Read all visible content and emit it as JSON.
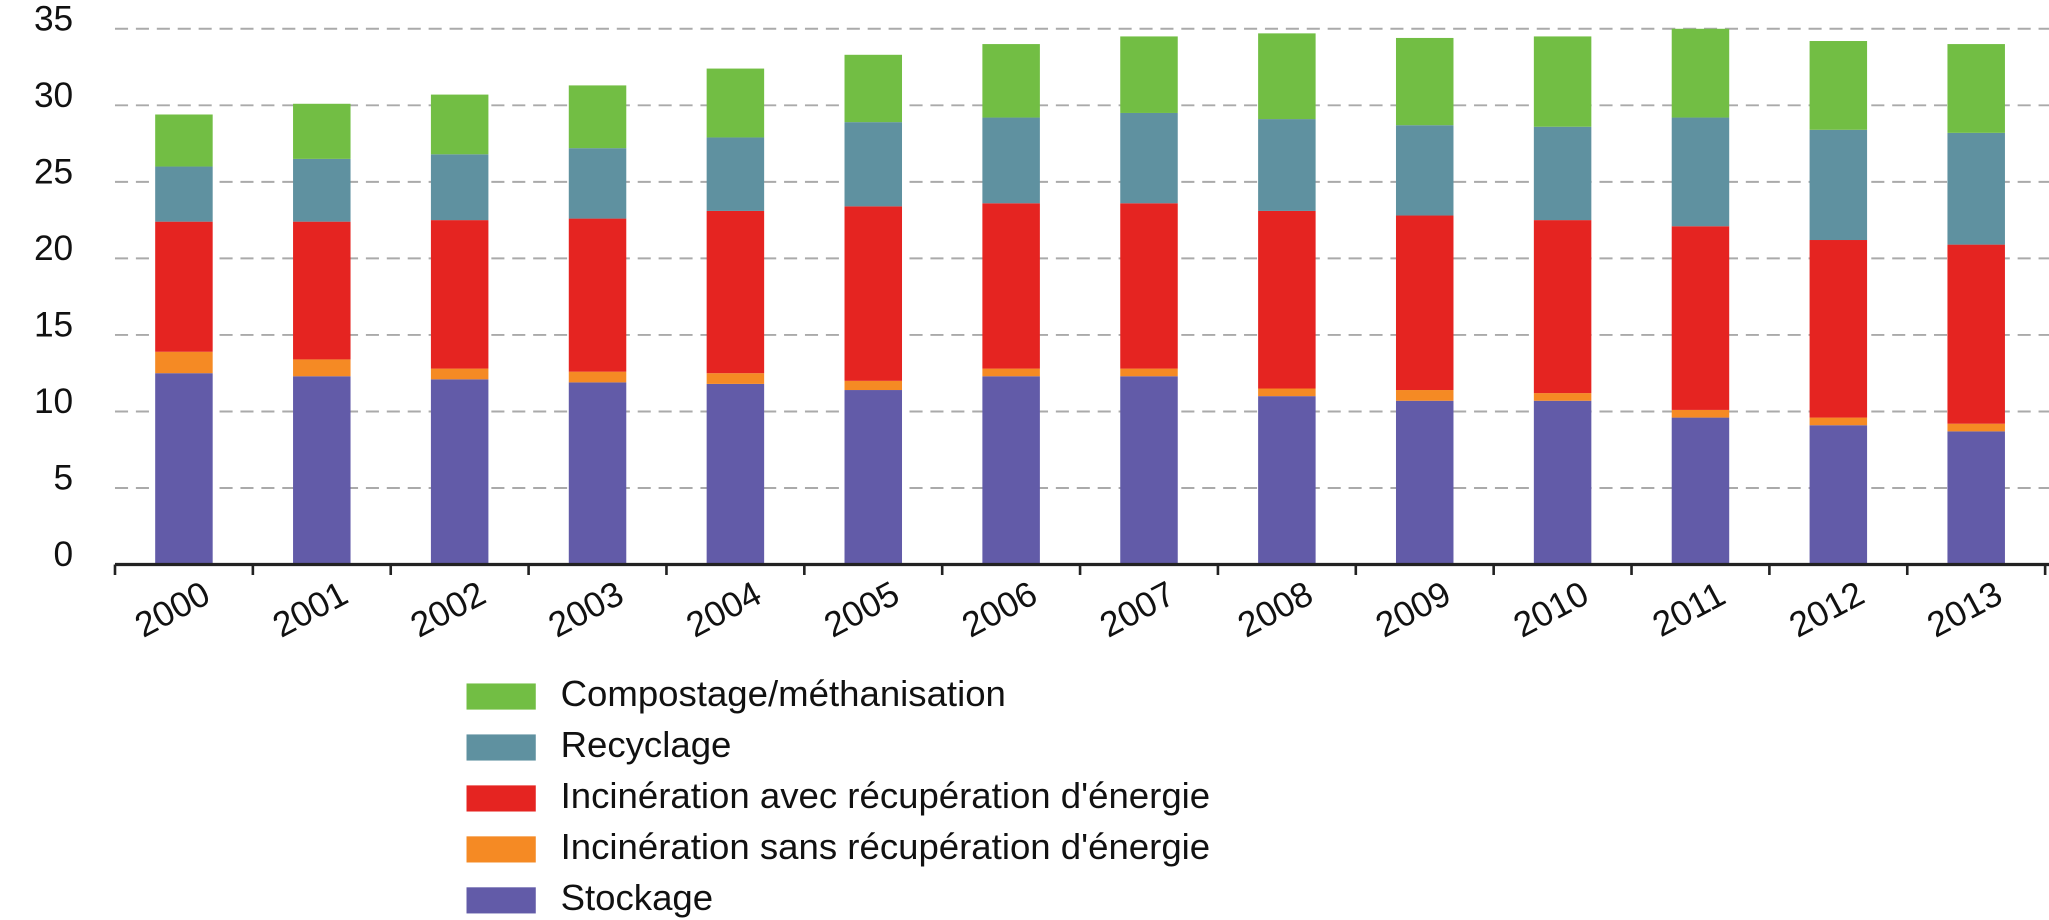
{
  "chart_data": {
    "type": "stacked-bar",
    "categories": [
      "2000",
      "2001",
      "2002",
      "2003",
      "2004",
      "2005",
      "2006",
      "2007",
      "2008",
      "2009",
      "2010",
      "2011",
      "2012",
      "2013"
    ],
    "series": [
      {
        "name": "Stockage",
        "color": "#625ba8",
        "values": [
          12.5,
          12.3,
          12.1,
          11.9,
          11.8,
          11.4,
          12.3,
          12.3,
          11.0,
          10.7,
          10.7,
          9.6,
          9.1,
          8.7
        ]
      },
      {
        "name": "Incinération sans récupération d'énergie",
        "color": "#f58a24",
        "values": [
          1.4,
          1.1,
          0.7,
          0.7,
          0.7,
          0.6,
          0.5,
          0.5,
          0.5,
          0.7,
          0.5,
          0.5,
          0.5,
          0.5
        ]
      },
      {
        "name": "Incinération avec récupération d'énergie",
        "color": "#e52421",
        "values": [
          8.5,
          9.0,
          9.7,
          10.0,
          10.6,
          11.4,
          10.8,
          10.8,
          11.6,
          11.4,
          11.3,
          12.0,
          11.6,
          11.7
        ]
      },
      {
        "name": "Recyclage",
        "color": "#5f91a0",
        "values": [
          3.6,
          4.1,
          4.3,
          4.6,
          4.8,
          5.5,
          5.6,
          5.9,
          6.0,
          5.9,
          6.1,
          7.1,
          7.2,
          7.3
        ]
      },
      {
        "name": "Compostage/méthanisation",
        "color": "#72be44",
        "values": [
          3.4,
          3.6,
          3.9,
          4.1,
          4.5,
          4.4,
          4.8,
          5.0,
          5.6,
          5.7,
          5.9,
          5.8,
          5.8,
          5.8
        ]
      }
    ],
    "ylim": [
      0,
      35
    ],
    "yticks": [
      0,
      5,
      10,
      15,
      20,
      25,
      30,
      35
    ],
    "grid": true
  }
}
